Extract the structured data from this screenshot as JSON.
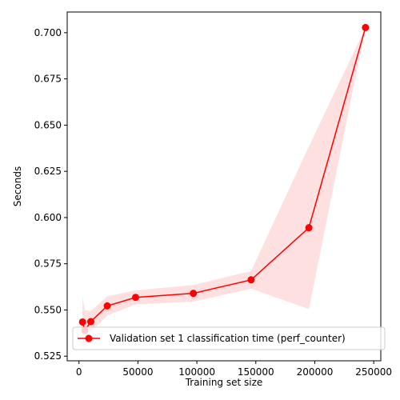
{
  "chart_data": {
    "type": "line",
    "xlabel": "Training set size",
    "ylabel": "Seconds",
    "xlim": [
      -10000,
      256000
    ],
    "ylim": [
      0.5225,
      0.7112
    ],
    "xticks": [
      0,
      50000,
      100000,
      150000,
      200000,
      250000
    ],
    "yticks": [
      0.525,
      0.55,
      0.575,
      0.6,
      0.625,
      0.65,
      0.675,
      0.7
    ],
    "xtick_labels": [
      "0",
      "50000",
      "100000",
      "150000",
      "200000",
      "250000"
    ],
    "ytick_labels": [
      "0.525",
      "0.550",
      "0.575",
      "0.600",
      "0.625",
      "0.650",
      "0.675",
      "0.700"
    ],
    "grid": false,
    "legend_position": "lower-right",
    "series": [
      {
        "name": "Validation set 1 classification time (perf_counter)",
        "color": "#ff0000",
        "band_color": "#ff9999",
        "x": [
          3000,
          5000,
          10000,
          24000,
          48000,
          97000,
          146000,
          195000,
          243000
        ],
        "y": [
          0.5435,
          0.539,
          0.5437,
          0.5522,
          0.5568,
          0.559,
          0.5663,
          0.5945,
          0.7028
        ],
        "lower": [
          0.53,
          0.528,
          0.538,
          0.547,
          0.553,
          0.5545,
          0.5615,
          0.5505,
          0.7028
        ],
        "upper": [
          0.557,
          0.55,
          0.5494,
          0.5574,
          0.5606,
          0.5635,
          0.5711,
          0.6385,
          0.7028
        ]
      }
    ]
  }
}
